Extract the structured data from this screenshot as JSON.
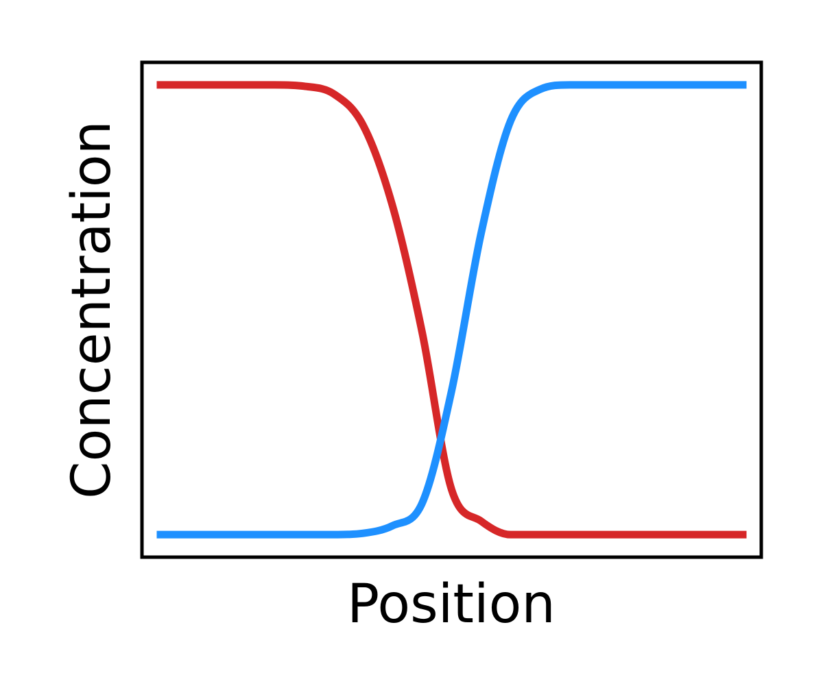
{
  "chart_data": {
    "type": "line",
    "title": "",
    "xlabel": "Position",
    "ylabel": "Concentration",
    "xlim": [
      -1.05,
      1.05
    ],
    "ylim": [
      -0.05,
      1.05
    ],
    "grid": false,
    "legend": "none",
    "x_ticks_shown": false,
    "y_ticks_shown": false,
    "x_sample": [
      -1.0,
      -0.8,
      -0.6,
      -0.5,
      -0.4,
      -0.3,
      -0.2,
      -0.1,
      0.0,
      0.1,
      0.2,
      0.3,
      0.4,
      0.5,
      0.6,
      0.8,
      1.0
    ],
    "series": [
      {
        "color": "#d62728",
        "shape": "falling sigmoid",
        "values": [
          1.0,
          1.0,
          1.0,
          0.997,
          0.98,
          0.91,
          0.73,
          0.45,
          0.1,
          0.03,
          0.0,
          0.0,
          0.0,
          0.0,
          0.0,
          0.0,
          0.0
        ]
      },
      {
        "color": "#1e90ff",
        "shape": "rising sigmoid",
        "values": [
          0.0,
          0.0,
          0.0,
          0.0,
          0.0,
          0.003,
          0.02,
          0.07,
          0.32,
          0.67,
          0.92,
          0.99,
          1.0,
          1.0,
          1.0,
          1.0,
          1.0
        ]
      }
    ]
  }
}
